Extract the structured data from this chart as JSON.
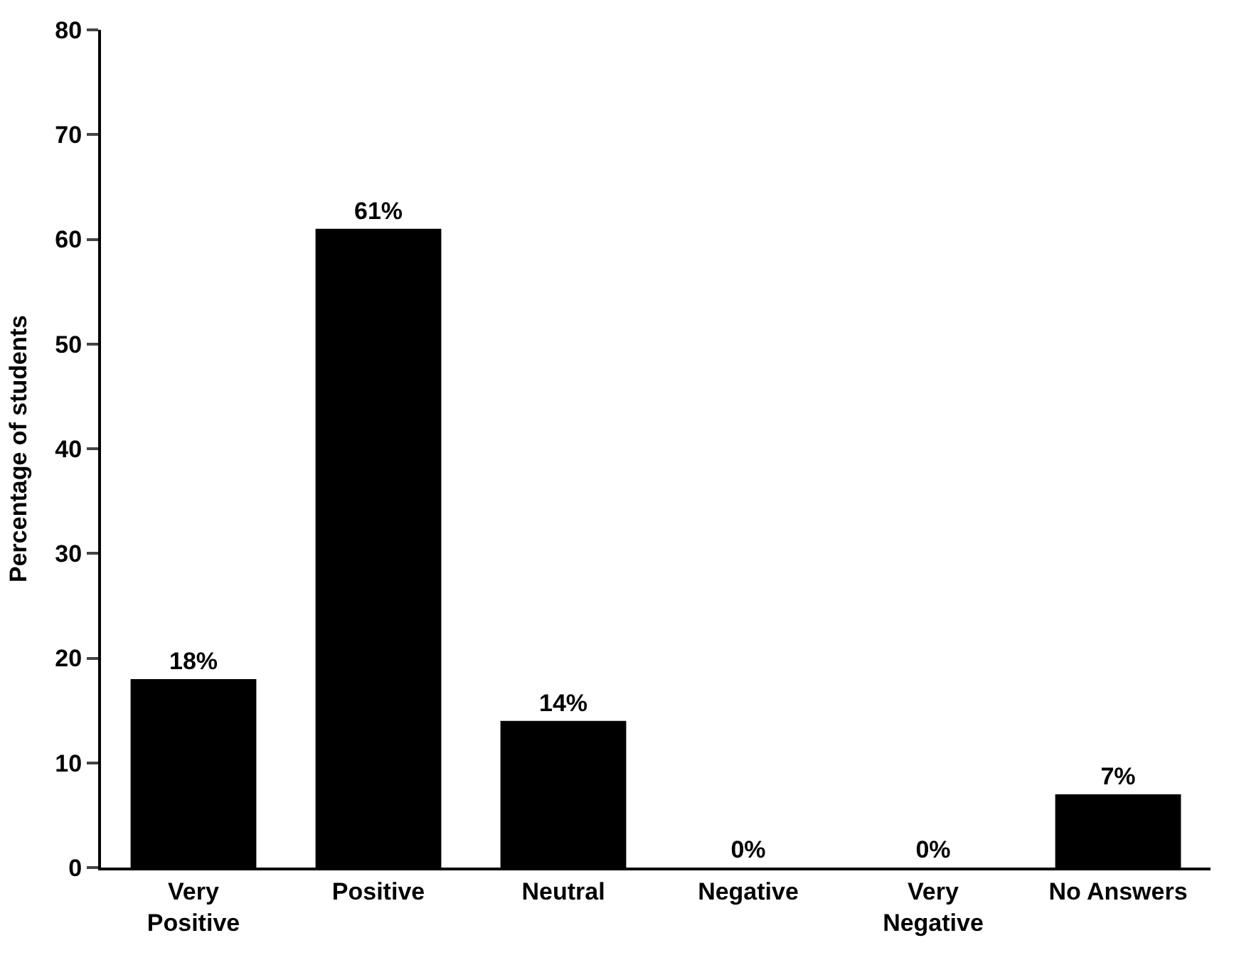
{
  "chart_data": {
    "type": "bar",
    "ylabel": "Percentage of students",
    "categories": [
      "Very\nPositive",
      "Positive",
      "Neutral",
      "Negative",
      "Very\nNegative",
      "No Answers"
    ],
    "values": [
      18,
      61,
      14,
      0,
      0,
      7
    ],
    "value_labels": [
      "18%",
      "61%",
      "14%",
      "0%",
      "0%",
      "7%"
    ],
    "color": "#000000",
    "ylim": [
      0,
      80
    ],
    "yticks": [
      0,
      10,
      20,
      30,
      40,
      50,
      60,
      70,
      80
    ],
    "legend": false
  }
}
